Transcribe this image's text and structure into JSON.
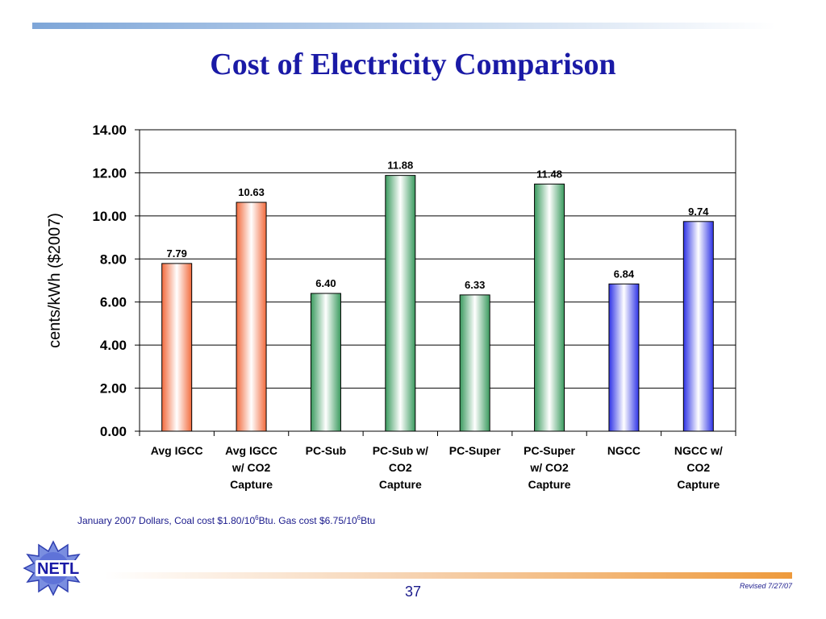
{
  "slide": {
    "title": "Cost of Electricity Comparison",
    "footnote_parts": {
      "a": "January 2007 Dollars, Coal cost $1.80/10",
      "sup1": "6",
      "b": "Btu. Gas cost $6.75/10",
      "sup2": "6",
      "c": "Btu"
    },
    "page_number": "37",
    "revised": "Revised 7/27/07",
    "logo_text": "NETL"
  },
  "chart_data": {
    "type": "bar",
    "categories": [
      [
        "Avg IGCC"
      ],
      [
        "Avg IGCC",
        "w/ CO2",
        "Capture"
      ],
      [
        "PC-Sub"
      ],
      [
        "PC-Sub w/",
        "CO2",
        "Capture"
      ],
      [
        "PC-Super"
      ],
      [
        "PC-Super",
        "w/ CO2",
        "Capture"
      ],
      [
        "NGCC"
      ],
      [
        "NGCC w/",
        "CO2",
        "Capture"
      ]
    ],
    "values": [
      7.79,
      10.63,
      6.4,
      11.88,
      6.33,
      11.48,
      6.84,
      9.74
    ],
    "value_labels": [
      "7.79",
      "10.63",
      "6.40",
      "11.88",
      "6.33",
      "11.48",
      "6.84",
      "9.74"
    ],
    "bar_colors": [
      "#f26a3c",
      "#f26a3c",
      "#3a9a5e",
      "#3a9a5e",
      "#3a9a5e",
      "#3a9a5e",
      "#2e33e6",
      "#2e33e6"
    ],
    "ylabel": "cents/kWh ($2007)",
    "ylim": [
      0,
      14
    ],
    "yticks": [
      "0.00",
      "2.00",
      "4.00",
      "6.00",
      "8.00",
      "10.00",
      "12.00",
      "14.00"
    ],
    "grid": true,
    "legend": "none"
  }
}
